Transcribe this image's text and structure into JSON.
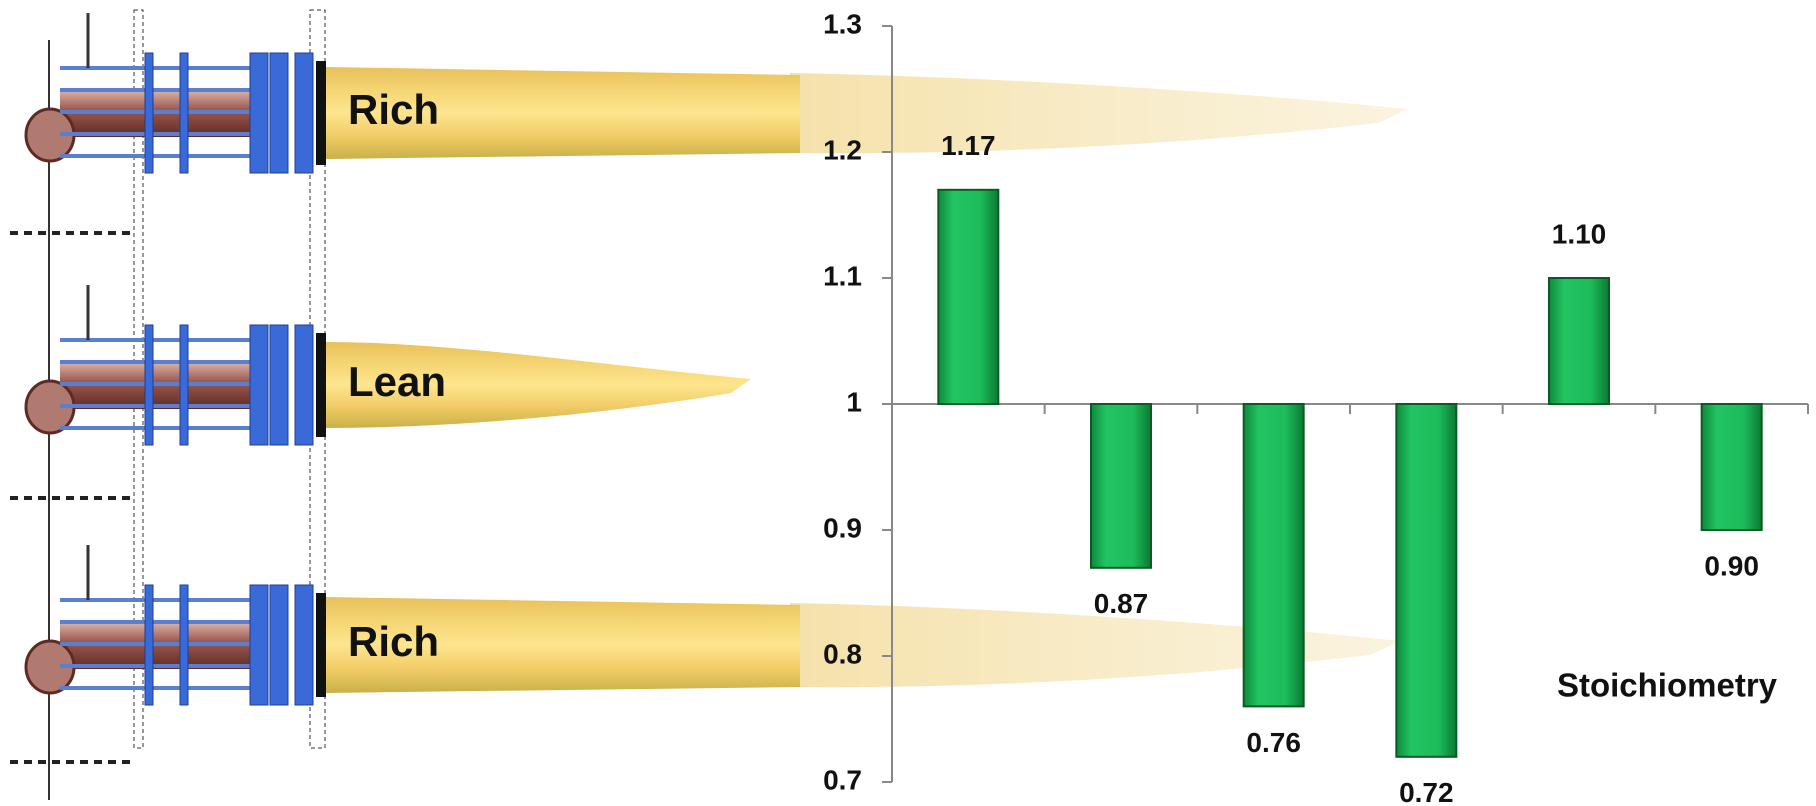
{
  "chart_data": {
    "type": "bar",
    "categories": [
      null,
      null,
      null,
      null,
      null,
      null
    ],
    "values": [
      1.17,
      0.87,
      0.76,
      0.72,
      1.1,
      0.9
    ],
    "value_labels": [
      "1.17",
      "0.87",
      "0.76",
      "0.72",
      "1.10",
      "0.90"
    ],
    "color": "#1dbb5a",
    "ylim": [
      0.7,
      1.3
    ],
    "yticks": [
      0.7,
      0.8,
      0.9,
      1,
      1.1,
      1.2,
      1.3
    ],
    "baseline": 1,
    "grid": false,
    "x_label": "Stoichiometry",
    "flame_labels": [
      "Rich",
      "Lean",
      "Rich"
    ]
  }
}
